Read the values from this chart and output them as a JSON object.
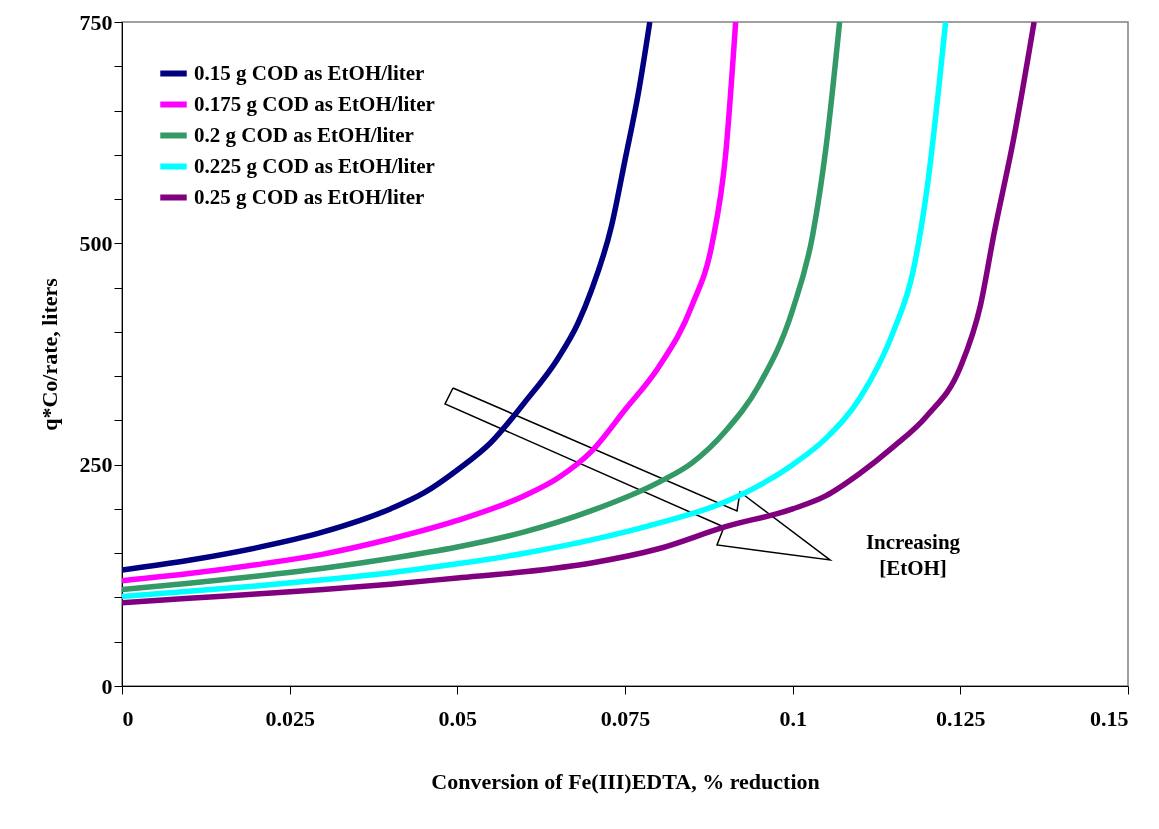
{
  "chart_data": {
    "type": "line",
    "xlabel": "Conversion of Fe(III)EDTA, % reduction",
    "ylabel": "q*Co/rate, liters",
    "xlim": [
      0,
      0.15
    ],
    "xticks": [
      0,
      0.025,
      0.05,
      0.075,
      0.1,
      0.125,
      0.15
    ],
    "ylim": [
      0,
      750
    ],
    "yticks": [
      0,
      {
        "value": 50,
        "label": null
      },
      {
        "value": 100,
        "label": null
      },
      {
        "value": 150,
        "label": null
      },
      {
        "value": 200,
        "label": null
      },
      250,
      {
        "value": 300,
        "label": null
      },
      {
        "value": 350,
        "label": null
      },
      {
        "value": 400,
        "label": null
      },
      {
        "value": 450,
        "label": null
      },
      500,
      {
        "value": 550,
        "label": null
      },
      {
        "value": 600,
        "label": null
      },
      {
        "value": 650,
        "label": null
      },
      {
        "value": 700,
        "label": null
      },
      750
    ],
    "grid": false,
    "legend": "top left",
    "marker": "none",
    "line_style": "solid",
    "annotations": [
      "Increasing [EtOH]"
    ],
    "series": [
      {
        "name": "0.15 g COD as EtOH/liter",
        "color": "#000080",
        "x": [
          0,
          0.01,
          0.02,
          0.03,
          0.04,
          0.045,
          0.05,
          0.055,
          0.06,
          0.065,
          0.068,
          0.07,
          0.073,
          0.075,
          0.077,
          0.0787
        ],
        "values": [
          131,
          142,
          156,
          174,
          200,
          218,
          244,
          275,
          320,
          370,
          410,
          447,
          520,
          594,
          670,
          750
        ]
      },
      {
        "name": "0.175 g COD as EtOH/liter",
        "color": "#ff00ff",
        "x": [
          0,
          0.01,
          0.02,
          0.03,
          0.04,
          0.05,
          0.06,
          0.065,
          0.07,
          0.075,
          0.08,
          0.085,
          0.088,
          0.09,
          0.0915
        ],
        "values": [
          119,
          127,
          137,
          149,
          166,
          187,
          215,
          235,
          265,
          312,
          360,
          430,
          500,
          600,
          750
        ]
      },
      {
        "name": "0.2 g COD as EtOH/liter",
        "color": "#339966",
        "x": [
          0,
          0.01,
          0.02,
          0.03,
          0.04,
          0.05,
          0.06,
          0.07,
          0.08,
          0.085,
          0.09,
          0.095,
          0.1,
          0.103,
          0.105,
          0.107
        ],
        "values": [
          109,
          116,
          124,
          133,
          144,
          157,
          174,
          198,
          230,
          252,
          288,
          340,
          425,
          510,
          610,
          750
        ]
      },
      {
        "name": "0.225 g COD as EtOH/liter",
        "color": "#00ffff",
        "x": [
          0,
          0.01,
          0.02,
          0.03,
          0.04,
          0.05,
          0.06,
          0.07,
          0.08,
          0.09,
          0.1,
          0.105,
          0.11,
          0.115,
          0.118,
          0.12,
          0.1228
        ],
        "values": [
          101,
          107,
          113,
          120,
          128,
          138,
          150,
          165,
          184,
          208,
          250,
          280,
          325,
          400,
          470,
          560,
          750
        ]
      },
      {
        "name": "0.25 g COD as EtOH/liter",
        "color": "#800080",
        "x": [
          0,
          0.01,
          0.02,
          0.03,
          0.04,
          0.05,
          0.06,
          0.07,
          0.08,
          0.09,
          0.1,
          0.105,
          0.11,
          0.115,
          0.12,
          0.125,
          0.128,
          0.13,
          0.133,
          0.136
        ],
        "values": [
          94,
          99,
          104,
          109,
          115,
          122,
          129,
          139,
          155,
          180,
          200,
          215,
          240,
          270,
          305,
          360,
          430,
          510,
          620,
          750
        ]
      }
    ]
  }
}
